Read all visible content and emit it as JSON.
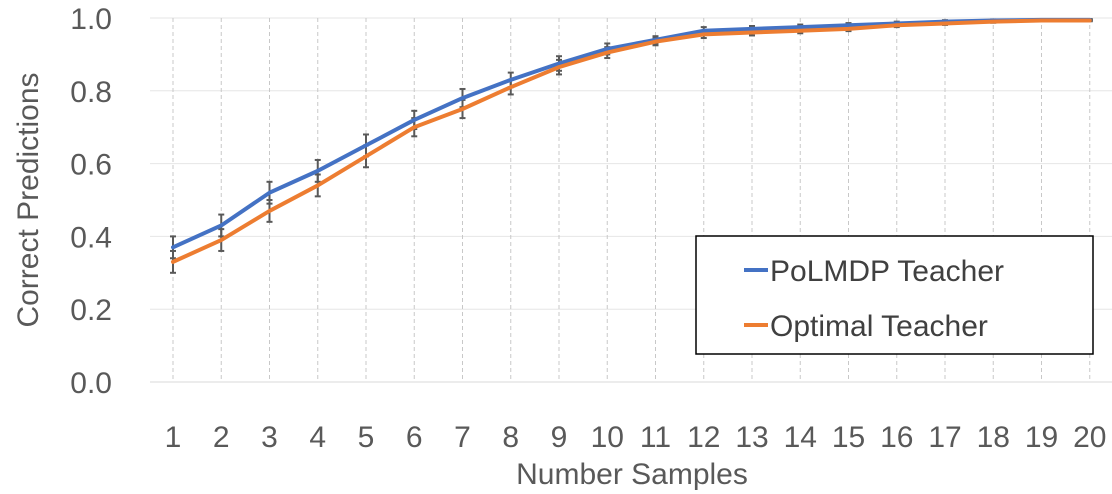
{
  "chart_data": {
    "type": "line",
    "title": "",
    "xlabel": "Number Samples",
    "ylabel": "Correct Predictions",
    "categories": [
      "1",
      "2",
      "3",
      "4",
      "5",
      "6",
      "7",
      "8",
      "9",
      "10",
      "11",
      "12",
      "13",
      "14",
      "15",
      "16",
      "17",
      "18",
      "19",
      "20"
    ],
    "ylim": [
      0,
      1
    ],
    "yticks": [
      "0.0",
      "0.2",
      "0.4",
      "0.6",
      "0.8",
      "1.0"
    ],
    "grid": true,
    "error_bars": true,
    "legend_position": "lower-right",
    "series": [
      {
        "name": "PoLMDP Teacher",
        "color": "#4472C4",
        "values": [
          0.37,
          0.43,
          0.52,
          0.58,
          0.65,
          0.72,
          0.78,
          0.83,
          0.875,
          0.915,
          0.94,
          0.965,
          0.97,
          0.975,
          0.98,
          0.985,
          0.99,
          0.993,
          0.995,
          0.995
        ],
        "errors": [
          0.03,
          0.03,
          0.03,
          0.03,
          0.03,
          0.025,
          0.025,
          0.02,
          0.02,
          0.015,
          0.01,
          0.01,
          0.008,
          0.007,
          0.006,
          0.005,
          0.004,
          0.003,
          0.002,
          0.002
        ]
      },
      {
        "name": "Optimal Teacher",
        "color": "#ED7D31",
        "values": [
          0.33,
          0.39,
          0.47,
          0.54,
          0.62,
          0.7,
          0.75,
          0.81,
          0.865,
          0.905,
          0.935,
          0.955,
          0.96,
          0.965,
          0.97,
          0.98,
          0.985,
          0.99,
          0.993,
          0.993
        ],
        "errors": [
          0.03,
          0.03,
          0.03,
          0.03,
          0.03,
          0.025,
          0.025,
          0.02,
          0.02,
          0.015,
          0.01,
          0.01,
          0.008,
          0.007,
          0.006,
          0.005,
          0.004,
          0.003,
          0.002,
          0.002
        ]
      }
    ]
  }
}
